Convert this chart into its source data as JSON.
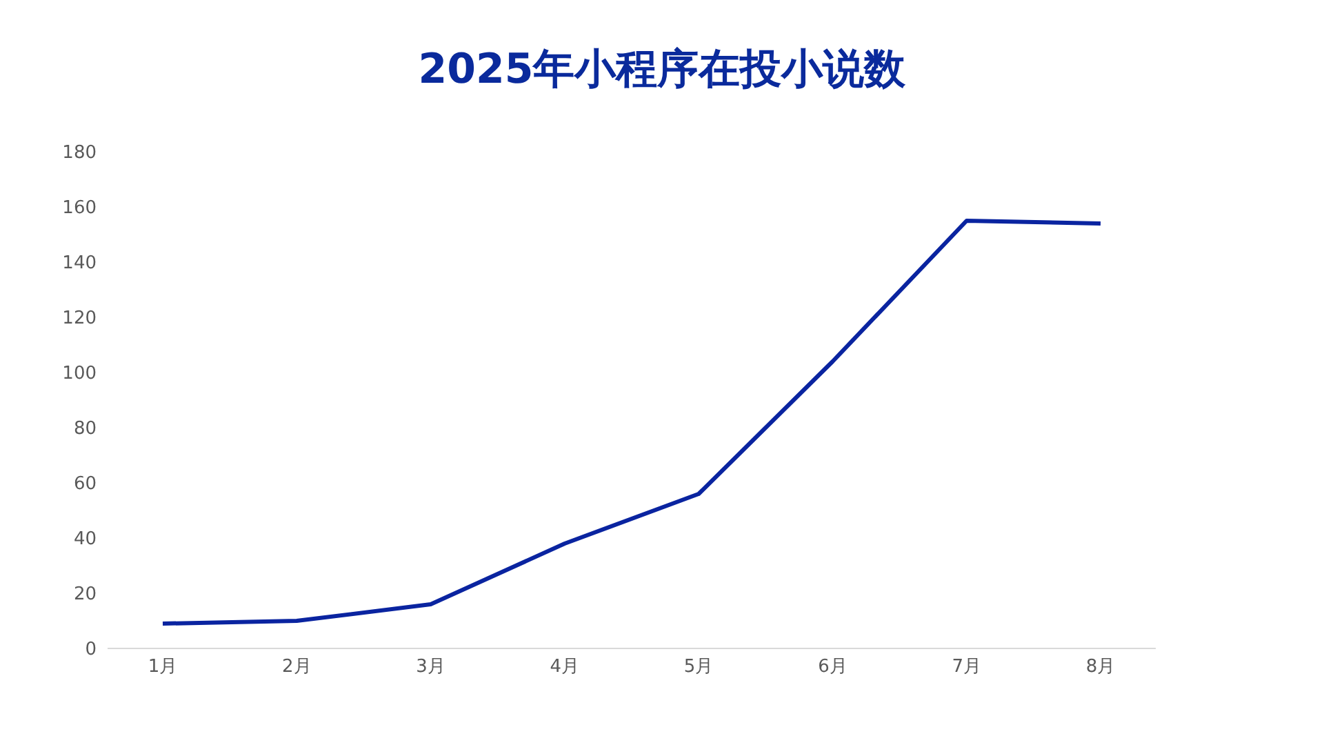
{
  "chart_data": {
    "type": "line",
    "title": "2025年小程序在投小说数",
    "categories": [
      "1月",
      "2月",
      "3月",
      "4月",
      "5月",
      "6月",
      "7月",
      "8月"
    ],
    "series": [
      {
        "color": "#0a24a0",
        "values": [
          9,
          10,
          16,
          38,
          56,
          104,
          155,
          154
        ]
      }
    ],
    "ylim": [
      0,
      180
    ],
    "yticks": [
      0,
      20,
      40,
      60,
      80,
      100,
      120,
      140,
      160,
      180
    ],
    "grid": false,
    "legend": false,
    "marker": "none",
    "line_style": "solid"
  }
}
